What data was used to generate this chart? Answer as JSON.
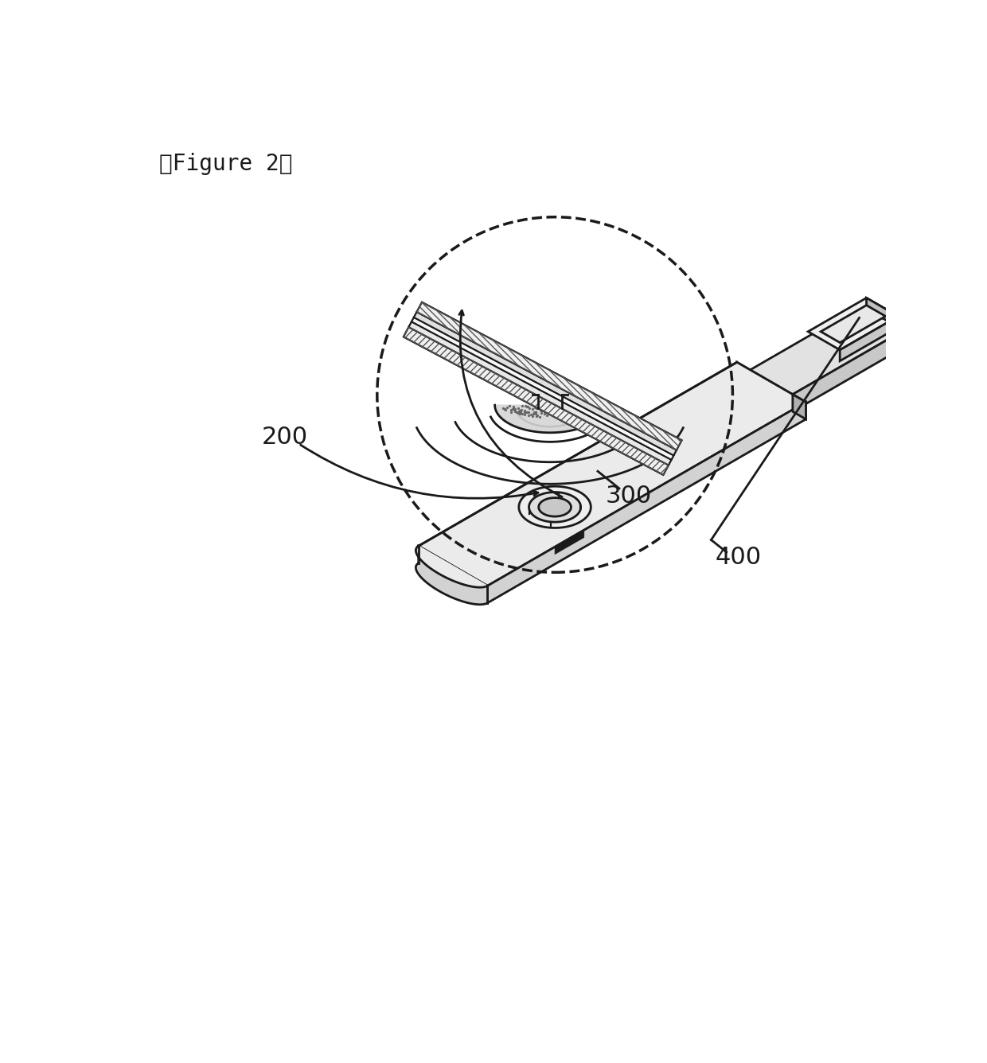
{
  "title": "』Figure 2『",
  "label_200": "200",
  "label_300": "300",
  "label_400": "400",
  "bg_color": "#ffffff",
  "line_color": "#1a1a1a",
  "title_fontsize": 20,
  "label_fontsize": 22,
  "strip_top_color": "#ebebeb",
  "strip_front_color": "#d2d2d2",
  "strip_right_color": "#c0c0c0",
  "connector_top_color": "#e2e2e2",
  "connector_front_color": "#c8c8c8",
  "pad_top_color": "#f0f0f0",
  "pad_inner_color": "#e8e8e8"
}
